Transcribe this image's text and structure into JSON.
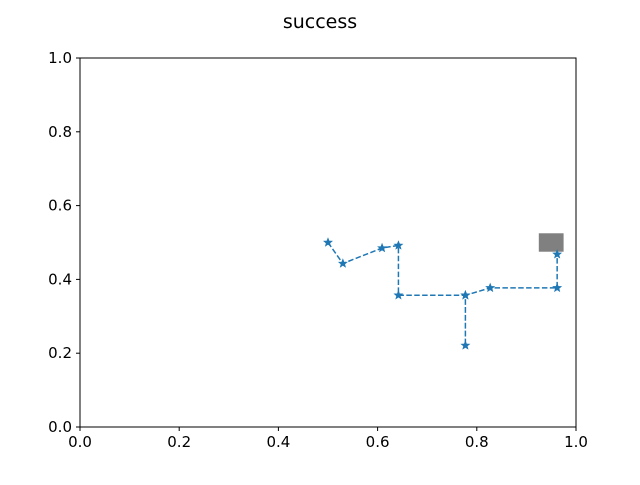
{
  "chart_data": {
    "type": "line",
    "title": "success",
    "xlabel": "",
    "ylabel": "",
    "xlim": [
      0.0,
      1.0
    ],
    "ylim": [
      0.0,
      1.0
    ],
    "x_ticks": [
      "0.0",
      "0.2",
      "0.4",
      "0.6",
      "0.8",
      "1.0"
    ],
    "y_ticks": [
      "0.0",
      "0.2",
      "0.4",
      "0.6",
      "0.8",
      "1.0"
    ],
    "grid": false,
    "series": [
      {
        "line_style": "dashed",
        "marker": "star",
        "color": "#1f77b4",
        "points": [
          {
            "x": 0.5,
            "y": 0.5
          },
          {
            "x": 0.53,
            "y": 0.443
          },
          {
            "x": 0.609,
            "y": 0.485
          },
          {
            "x": 0.642,
            "y": 0.492
          },
          {
            "x": 0.642,
            "y": 0.357
          },
          {
            "x": 0.777,
            "y": 0.357
          },
          {
            "x": 0.777,
            "y": 0.221
          },
          {
            "x": 0.777,
            "y": 0.357
          },
          {
            "x": 0.827,
            "y": 0.377
          },
          {
            "x": 0.962,
            "y": 0.377
          },
          {
            "x": 0.962,
            "y": 0.468
          }
        ]
      }
    ],
    "goal_marker": {
      "shape": "square",
      "color": "#808080",
      "x": 0.95,
      "y": 0.5,
      "half_size": 0.025
    }
  }
}
